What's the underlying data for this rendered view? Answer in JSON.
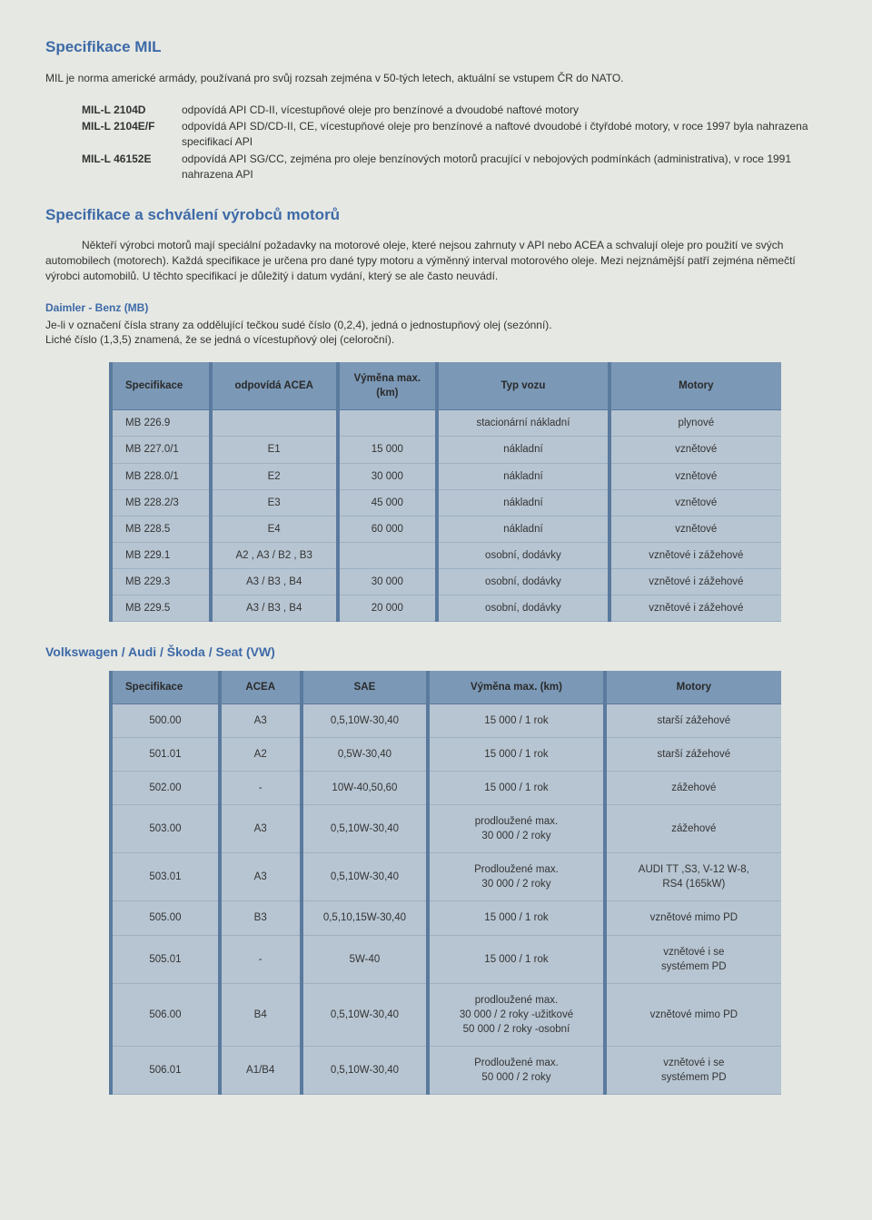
{
  "title_mil": "Specifikace MIL",
  "intro_mil": "MIL je norma americké armády, používaná pro svůj rozsah zejména v 50-tých letech, aktuální se vstupem ČR do NATO.",
  "mil_defs": [
    {
      "label": "MIL-L 2104D",
      "desc": "odpovídá API CD-II, vícestupňové oleje pro benzínové a dvoudobé naftové motory"
    },
    {
      "label": "MIL-L 2104E/F",
      "desc": "odpovídá API SD/CD-II, CE, vícestupňové oleje pro benzínové a naftové dvoudobé i čtyřdobé motory, v roce 1997 byla nahrazena specifikací API"
    },
    {
      "label": "MIL-L 46152E",
      "desc": "odpovídá API SG/CC, zejména pro oleje benzínových motorů pracující v nebojových podmínkách (administrativa), v roce 1991 nahrazena API"
    }
  ],
  "title_spec": "Specifikace a schválení výrobců motorů",
  "spec_para": "Někteří výrobci motorů mají speciální požadavky na motorové oleje, které nejsou zahrnuty v API nebo ACEA a schvalují oleje pro použití ve svých automobilech (motorech). Každá specifikace je určena pro dané typy motoru a výměnný interval motorového oleje. Mezi nejznámější patří zejména němečtí výrobci automobilů. U těchto specifikací je důležitý i datum vydání, který se ale často neuvádí.",
  "daimler_title": "Daimler - Benz (MB)",
  "daimler_desc1": "Je-li v označení čísla strany za oddělující tečkou sudé číslo (0,2,4),  jedná o jednostupňový olej (sezónní).",
  "daimler_desc2": "Liché číslo (1,3,5) znamená, že se jedná o vícestupňový olej (celoroční).",
  "mb_table": {
    "headers": [
      "Specifikace",
      "odpovídá ACEA",
      "Výměna max. (km)",
      "Typ vozu",
      "Motory"
    ],
    "rows": [
      [
        "MB 226.9",
        "",
        "",
        "stacionární  nákladní",
        "plynové"
      ],
      [
        "MB 227.0/1",
        "E1",
        "15 000",
        "nákladní",
        "vznětové"
      ],
      [
        "MB 228.0/1",
        "E2",
        "30 000",
        "nákladní",
        "vznětové"
      ],
      [
        "MB 228.2/3",
        "E3",
        "45 000",
        "nákladní",
        "vznětové"
      ],
      [
        "MB 228.5",
        "E4",
        "60 000",
        "nákladní",
        "vznětové"
      ],
      [
        "MB 229.1",
        "A2 , A3 / B2 , B3",
        "",
        "osobní, dodávky",
        "vznětové i zážehové"
      ],
      [
        "MB 229.3",
        "A3 / B3 , B4",
        "30 000",
        "osobní, dodávky",
        "vznětové i zážehové"
      ],
      [
        "MB 229.5",
        "A3 / B3 , B4",
        "20 000",
        "osobní, dodávky",
        "vznětové i zážehové"
      ]
    ],
    "col_widths": [
      "110px",
      "140px",
      "110px",
      "190px",
      "190px"
    ]
  },
  "vw_title": "Volkswagen / Audi / Škoda / Seat  (VW)",
  "vw_table": {
    "headers": [
      "Specifikace",
      "ACEA",
      "SAE",
      "Výměna max. (km)",
      "Motory"
    ],
    "rows": [
      [
        "500.00",
        "A3",
        "0,5,10W-30,40",
        "15 000 / 1 rok",
        "starší zážehové"
      ],
      [
        "501.01",
        "A2",
        "0,5W-30,40",
        "15 000 / 1 rok",
        "starší zážehové"
      ],
      [
        "502.00",
        "-",
        "10W-40,50,60",
        "15 000 / 1 rok",
        "zážehové"
      ],
      [
        "503.00",
        "A3",
        "0,5,10W-30,40",
        "prodloužené max.\n30 000 / 2 roky",
        "zážehové"
      ],
      [
        "503.01",
        "A3",
        "0,5,10W-30,40",
        "Prodloužené max.\n30 000 / 2 roky",
        "AUDI TT ,S3, V-12 W-8,\nRS4 (165kW)"
      ],
      [
        "505.00",
        "B3",
        "0,5,10,15W-30,40",
        "15 000 / 1 rok",
        "vznětové mimo PD"
      ],
      [
        "505.01",
        "-",
        "5W-40",
        "15 000 / 1 rok",
        "vznětové i se\nsystémem PD"
      ],
      [
        "506.00",
        "B4",
        "0,5,10W-30,40",
        "prodloužené max.\n30 000 / 2 roky -užitkové\n50 000 / 2 roky -osobní",
        "vznětové mimo PD"
      ],
      [
        "506.01",
        "A1/B4",
        "0,5,10W-30,40",
        "Prodloužené max.\n50 000 / 2 roky",
        "vznětové i se\nsystémem PD"
      ]
    ],
    "col_widths": [
      "120px",
      "90px",
      "140px",
      "195px",
      "195px"
    ]
  },
  "colors": {
    "page_bg": "#e6e8e3",
    "heading": "#3d6aa8",
    "th_bg": "#7b98b6",
    "td_bg": "#b7c5d2",
    "border": "#5a7a9e"
  }
}
